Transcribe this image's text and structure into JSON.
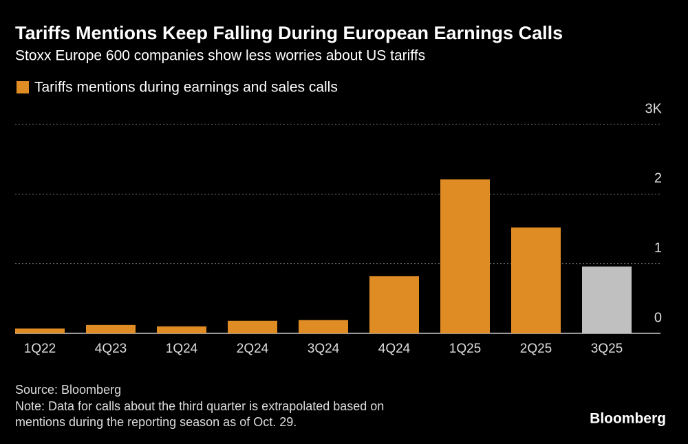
{
  "chart_data": {
    "type": "bar",
    "title": "Tariffs Mentions Keep Falling During European Earnings Calls",
    "subtitle": "Stoxx Europe 600 companies show less worries about US tariffs",
    "categories": [
      "1Q22",
      "4Q23",
      "1Q24",
      "2Q24",
      "3Q24",
      "4Q24",
      "1Q25",
      "2Q25",
      "3Q25"
    ],
    "series": [
      {
        "name": "Tariffs mentions during earnings and sales calls",
        "color": "#e08c24",
        "values": [
          0.07,
          0.12,
          0.1,
          0.18,
          0.19,
          0.82,
          2.21,
          1.52,
          0.96
        ],
        "colors": [
          "#e08c24",
          "#e08c24",
          "#e08c24",
          "#e08c24",
          "#e08c24",
          "#e08c24",
          "#e08c24",
          "#e08c24",
          "#c0c0c0"
        ]
      }
    ],
    "ylim": [
      0,
      3
    ],
    "yticks": [
      0,
      1,
      2,
      {
        "value": 3,
        "label": "3K"
      }
    ],
    "grid": true,
    "source": "Source: Bloomberg",
    "note": [
      "Note: Data for calls about the third quarter is extrapolated based on",
      "mentions during the reporting season as of Oct. 29."
    ],
    "brand": "Bloomberg"
  }
}
